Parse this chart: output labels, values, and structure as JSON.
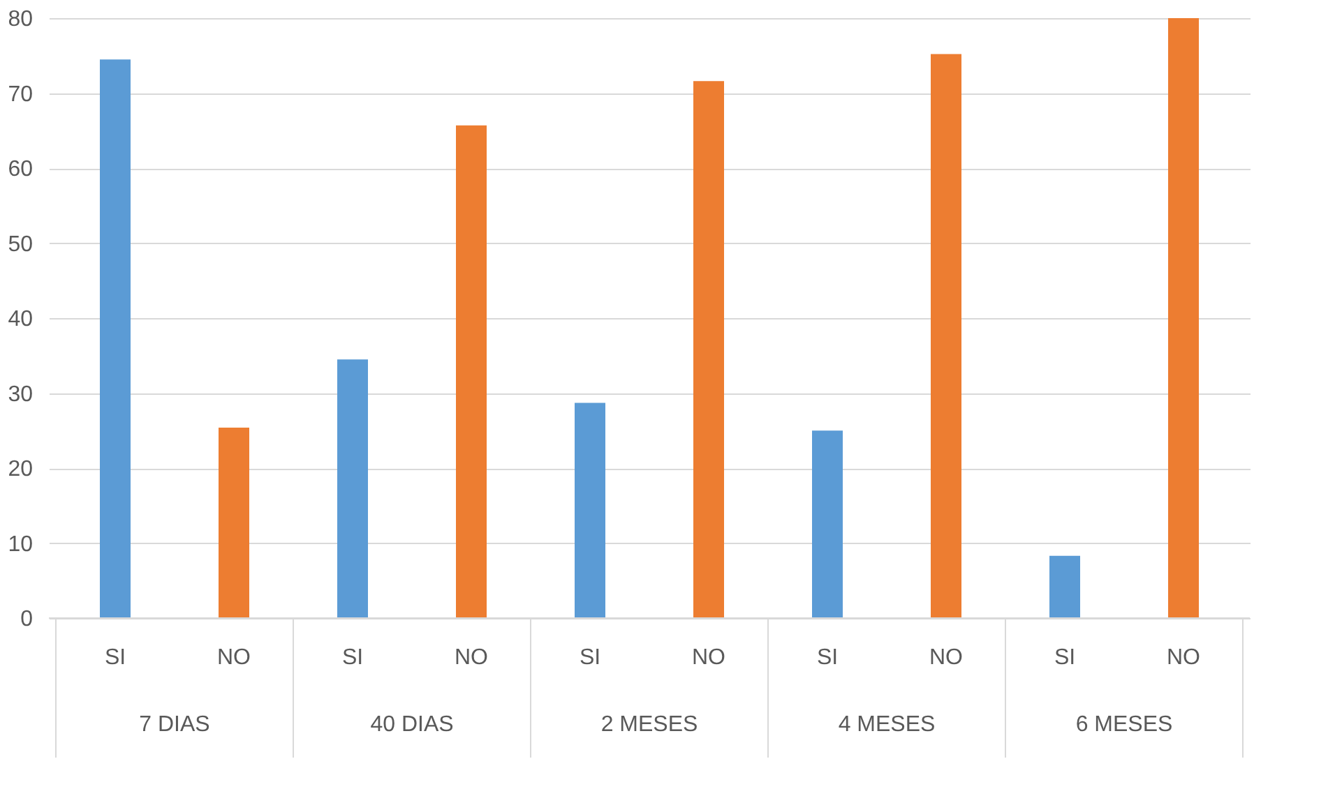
{
  "chart_data": {
    "type": "bar",
    "categories": [
      "7 DIAS",
      "40 DIAS",
      "2 MESES",
      "4 MESES",
      "6 MESES"
    ],
    "series": [
      {
        "name": "SI",
        "color": "#5b9bd5",
        "values": [
          74.5,
          34.5,
          28.7,
          25.0,
          8.3
        ]
      },
      {
        "name": "NO",
        "color": "#ed7d31",
        "values": [
          25.4,
          65.7,
          71.6,
          75.2,
          80
        ]
      }
    ],
    "ylim": [
      0,
      80
    ],
    "yticks": [
      0,
      10,
      20,
      30,
      40,
      50,
      60,
      70,
      80
    ],
    "grid": "y",
    "legend": false
  }
}
